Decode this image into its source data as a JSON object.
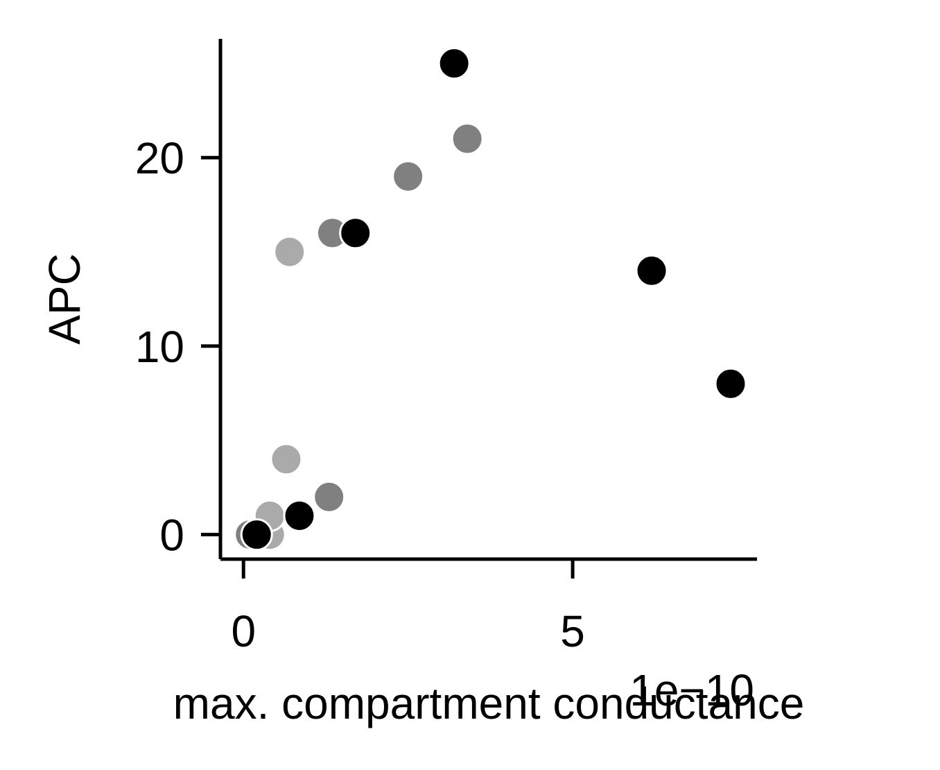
{
  "chart_data": {
    "type": "scatter",
    "title": "",
    "xlabel": "max. compartment conductance",
    "ylabel": "APC",
    "x_offset_label": "1e−10",
    "xlim": [
      -0.35,
      7.8
    ],
    "ylim": [
      -1.3,
      26.3
    ],
    "x_ticks": [
      0,
      5
    ],
    "y_ticks": [
      0,
      10,
      20
    ],
    "x_tick_labels": [
      "0",
      "5"
    ],
    "y_tick_labels": [
      "0",
      "10",
      "20"
    ],
    "grid": false,
    "legend": "none",
    "series": [
      {
        "color": "#aaaaaa",
        "points": [
          {
            "x": 0.4,
            "y": 0
          },
          {
            "x": 0.4,
            "y": 1
          },
          {
            "x": 0.65,
            "y": 4
          },
          {
            "x": 0.7,
            "y": 15
          }
        ]
      },
      {
        "color": "#808080",
        "points": [
          {
            "x": 0.1,
            "y": 0
          },
          {
            "x": 1.3,
            "y": 2
          },
          {
            "x": 1.35,
            "y": 16
          },
          {
            "x": 2.5,
            "y": 19
          },
          {
            "x": 3.4,
            "y": 21
          }
        ]
      },
      {
        "color": "#000000",
        "points": [
          {
            "x": 0.2,
            "y": 0
          },
          {
            "x": 0.85,
            "y": 1
          },
          {
            "x": 1.7,
            "y": 16
          },
          {
            "x": 3.2,
            "y": 25
          },
          {
            "x": 6.2,
            "y": 14
          },
          {
            "x": 7.4,
            "y": 8
          }
        ]
      }
    ]
  }
}
